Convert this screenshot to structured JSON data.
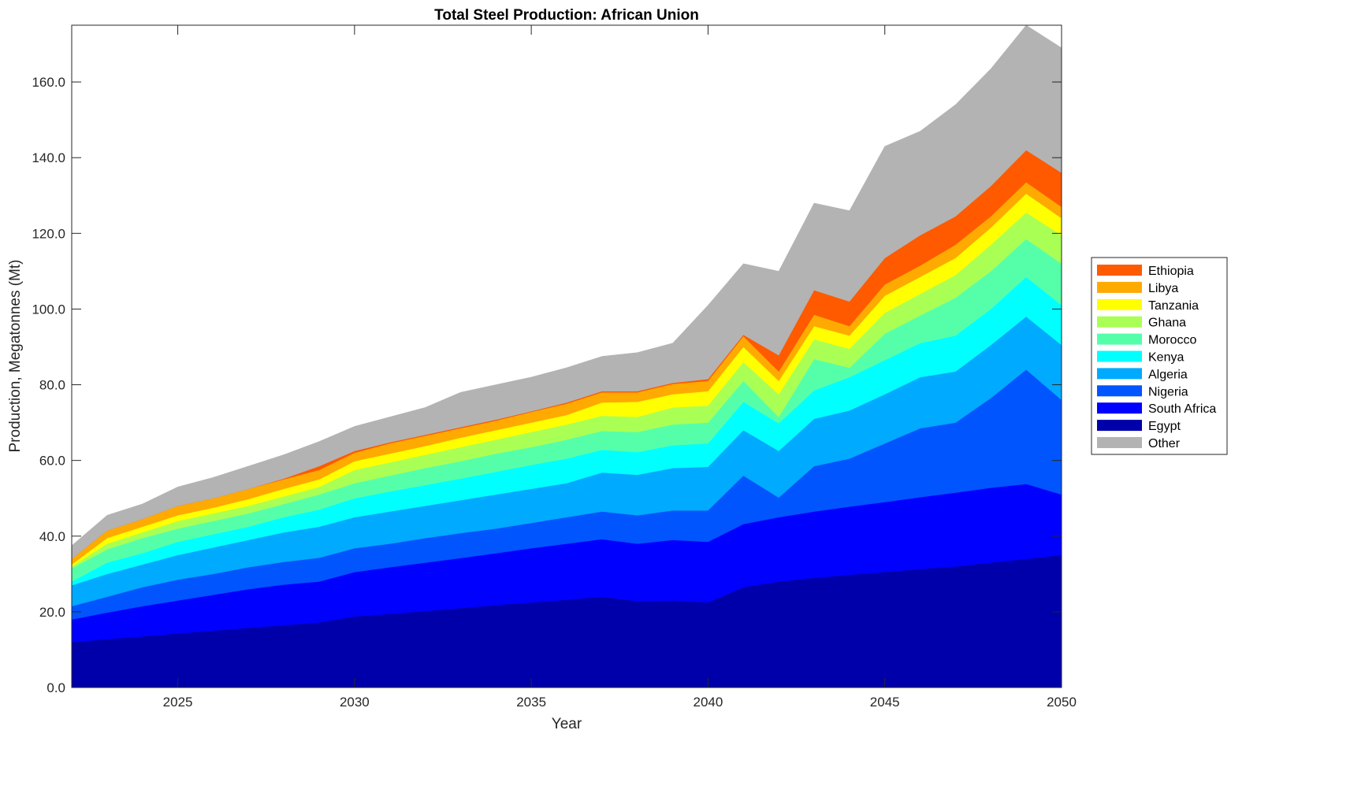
{
  "chart_data": {
    "type": "area",
    "stacked": true,
    "title": "Total Steel Production: African Union",
    "xlabel": "Year",
    "ylabel": "Production, Megatonnes (Mt)",
    "xlim": [
      2022,
      2050
    ],
    "ylim": [
      0,
      175
    ],
    "xticks": [
      2025,
      2030,
      2035,
      2040,
      2045,
      2050
    ],
    "xtick_labels": [
      "2025",
      "2030",
      "2035",
      "2040",
      "2045",
      "2050"
    ],
    "yticks": [
      0,
      20,
      40,
      60,
      80,
      100,
      120,
      140,
      160
    ],
    "ytick_labels": [
      "0.0",
      "20.0",
      "40.0",
      "60.0",
      "80.0",
      "100.0",
      "120.0",
      "140.0",
      "160.0"
    ],
    "grid": false,
    "legend_placement": "outside-right",
    "x": [
      2022,
      2023,
      2024,
      2025,
      2026,
      2027,
      2028,
      2029,
      2030,
      2031,
      2032,
      2033,
      2034,
      2035,
      2036,
      2037,
      2038,
      2039,
      2040,
      2041,
      2042,
      2043,
      2044,
      2045,
      2046,
      2047,
      2048,
      2049,
      2050
    ],
    "series": [
      {
        "name": "Egypt",
        "color": "#0000aa",
        "values": [
          12,
          12.8,
          13.5,
          14.3,
          15,
          15.8,
          16.5,
          17.2,
          18.8,
          19.5,
          20.2,
          21,
          21.8,
          22.5,
          23.2,
          24,
          22.8,
          23,
          22.5,
          26.5,
          28,
          29,
          29.8,
          30.5,
          31.3,
          32,
          33,
          34,
          35
        ]
      },
      {
        "name": "South Africa",
        "color": "#0000ff",
        "values": [
          6,
          7,
          8,
          8.7,
          9.5,
          10.2,
          10.7,
          10.8,
          11.7,
          12.3,
          12.8,
          13.2,
          13.7,
          14.3,
          14.8,
          15.2,
          15.2,
          16,
          16,
          16.7,
          17,
          17.5,
          18,
          18.5,
          19,
          19.5,
          19.8,
          19.8,
          16
        ]
      },
      {
        "name": "Nigeria",
        "color": "#0055ff",
        "values": [
          3.5,
          4.2,
          5,
          5.5,
          5.5,
          5.8,
          6,
          6.3,
          6.3,
          6.2,
          6.5,
          6.6,
          6.5,
          6.7,
          7,
          7.3,
          7.5,
          7.8,
          8.3,
          12.8,
          5.2,
          12,
          12.7,
          15.5,
          18.2,
          18.5,
          23.7,
          30.2,
          25
        ]
      },
      {
        "name": "Algeria",
        "color": "#00aaff",
        "values": [
          5.5,
          6,
          6,
          6.5,
          7,
          7.2,
          7.8,
          8.2,
          8.2,
          8.5,
          8.5,
          8.7,
          9,
          9,
          9,
          10.3,
          10.7,
          11.2,
          11.5,
          12,
          12.3,
          12.5,
          12.7,
          13,
          13.5,
          13.5,
          14,
          14,
          14.5
        ]
      },
      {
        "name": "Kenya",
        "color": "#00ffff",
        "values": [
          1,
          3,
          3,
          3.5,
          3.5,
          3.5,
          4,
          4.5,
          5,
          5.3,
          5.5,
          5.7,
          6,
          6.3,
          6.5,
          6,
          6,
          6,
          6.2,
          7.5,
          7.3,
          7.5,
          8.8,
          9,
          9,
          9.5,
          9.5,
          10.5,
          10.5
        ]
      },
      {
        "name": "Morocco",
        "color": "#55ffaa",
        "values": [
          3.5,
          3.5,
          4,
          3.5,
          3.5,
          3.5,
          3.5,
          4,
          4,
          4.2,
          4.5,
          4.6,
          4.8,
          4.7,
          5,
          5,
          5.3,
          5.5,
          5.5,
          5.5,
          1.7,
          8.3,
          2.5,
          7,
          7.3,
          10,
          10,
          10,
          11
        ]
      },
      {
        "name": "Ghana",
        "color": "#aaff55",
        "values": [
          0.5,
          1.5,
          1.5,
          2,
          2,
          2,
          2,
          2,
          3.5,
          3.5,
          3.5,
          3.7,
          3.7,
          4,
          4,
          4,
          4,
          4.5,
          4.5,
          5,
          6,
          5.2,
          5,
          5.5,
          5.7,
          6,
          7,
          7,
          7.5
        ]
      },
      {
        "name": "Tanzania",
        "color": "#ffff00",
        "values": [
          0.5,
          1.5,
          1.5,
          1.5,
          1.5,
          1.8,
          2,
          2,
          2.3,
          2.3,
          2.3,
          2.5,
          2.5,
          2.5,
          2.5,
          3.5,
          4,
          3.5,
          3.8,
          4,
          3.5,
          3.5,
          3.5,
          4.5,
          4.5,
          4.5,
          4.5,
          5,
          4.5
        ]
      },
      {
        "name": "Libya",
        "color": "#ffaa00",
        "values": [
          1.5,
          2,
          2,
          2.5,
          2.5,
          2.7,
          2.5,
          2.5,
          2.2,
          2.7,
          2.7,
          2.5,
          2.5,
          2.8,
          3,
          2.7,
          2.5,
          2.7,
          2.7,
          2.8,
          2.5,
          3,
          2.5,
          3,
          3,
          3.5,
          3,
          3,
          3
        ]
      },
      {
        "name": "Ethiopia",
        "color": "#ff5a00",
        "values": [
          0,
          0,
          0,
          0,
          0,
          0,
          0.2,
          1,
          0.5,
          0.3,
          0.3,
          0.3,
          0.3,
          0.2,
          0.3,
          0.3,
          0.3,
          0.3,
          0.5,
          0.4,
          4.3,
          6.5,
          6.5,
          7,
          8,
          7.5,
          8,
          8.5,
          9
        ]
      },
      {
        "name": "Other",
        "color": "#b3b3b3",
        "values": [
          3.5,
          4,
          4,
          5,
          5.5,
          6,
          6.3,
          6.5,
          6.5,
          6.7,
          7.2,
          9.2,
          9.2,
          9,
          9.2,
          9.2,
          10.2,
          10.5,
          19.5,
          18.8,
          22.2,
          23,
          24,
          29.5,
          27.5,
          29.5,
          31,
          33,
          33
        ]
      }
    ],
    "legend_order": [
      "Ethiopia",
      "Libya",
      "Tanzania",
      "Ghana",
      "Morocco",
      "Kenya",
      "Algeria",
      "Nigeria",
      "South Africa",
      "Egypt",
      "Other"
    ]
  }
}
